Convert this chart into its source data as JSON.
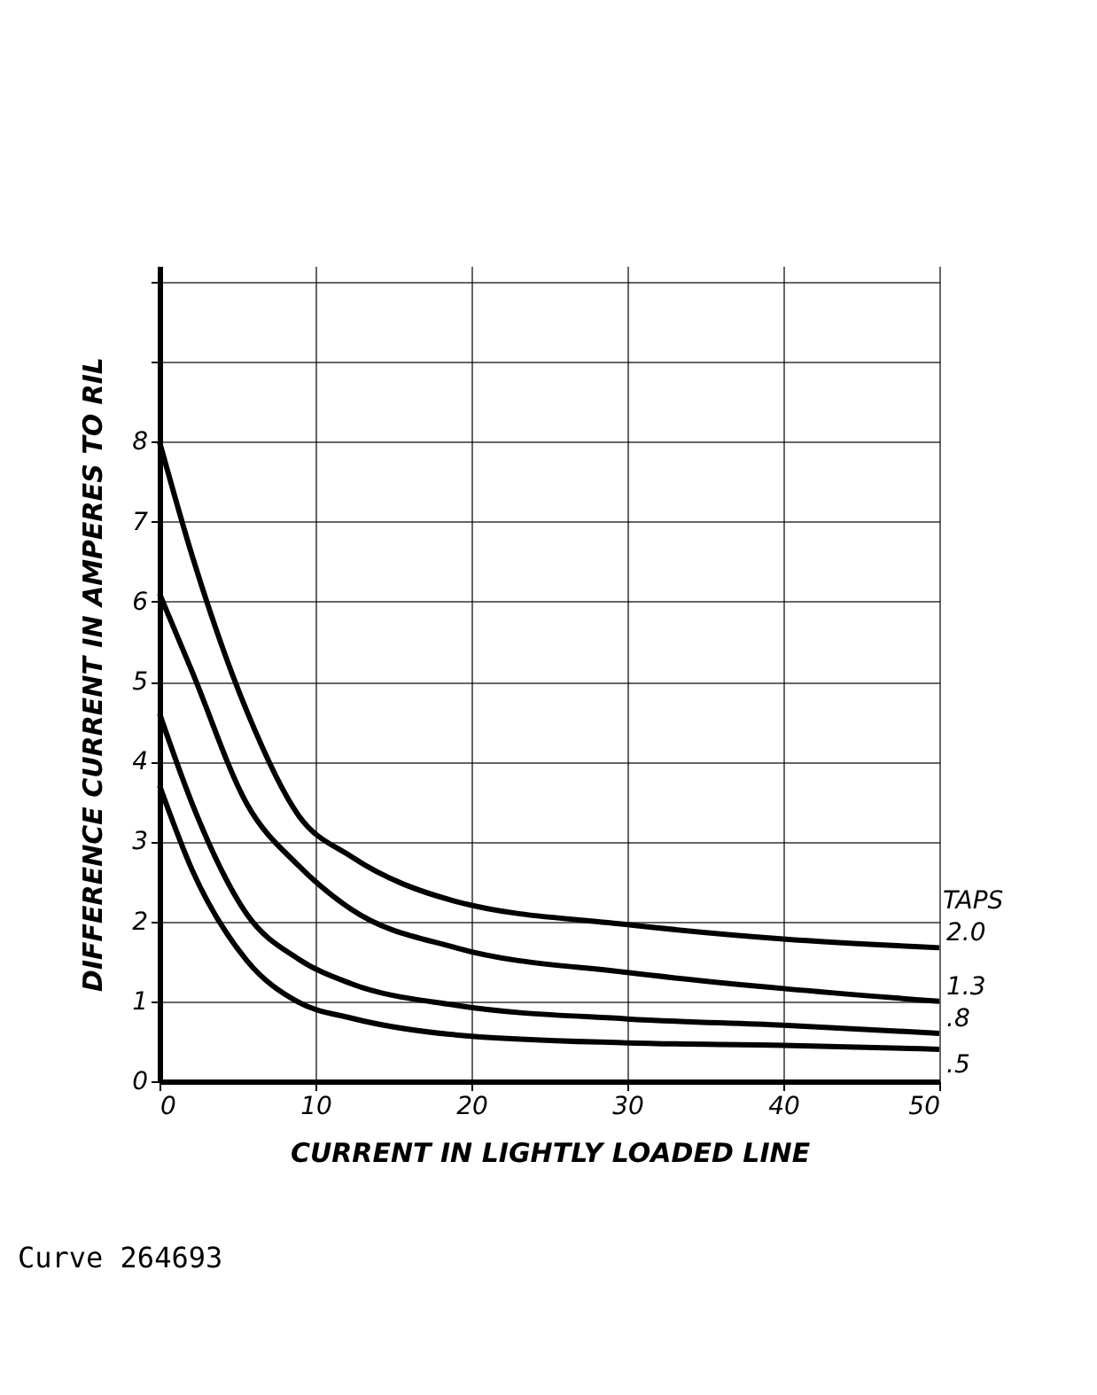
{
  "chart_data": {
    "type": "line",
    "xlabel": "CURRENT IN LIGHTLY LOADED LINE",
    "ylabel": "DIFFERENCE CURRENT IN AMPERES TO RIL",
    "legend_title": "TAPS",
    "x": [
      0,
      2.1,
      5.6,
      8.9,
      12.3,
      19,
      30,
      40,
      50
    ],
    "series": [
      {
        "name": "2.0",
        "color": "#000000",
        "values": [
          8,
          6.57,
          4.63,
          3.33,
          2.81,
          2.25,
          1.96,
          1.78,
          1.67
        ]
      },
      {
        "name": "1.3",
        "color": "#000000",
        "values": [
          6.1,
          5.12,
          3.47,
          2.7,
          2.15,
          1.67,
          1.36,
          1.16,
          1.0
        ]
      },
      {
        "name": ".8",
        "color": "#000000",
        "values": [
          4.6,
          3.47,
          2.09,
          1.53,
          1.22,
          0.95,
          0.78,
          0.7,
          0.6
        ]
      },
      {
        "name": ".5",
        "color": "#000000",
        "values": [
          3.7,
          2.64,
          1.51,
          0.99,
          0.79,
          0.58,
          0.48,
          0.45,
          0.4
        ]
      }
    ],
    "xlim": [
      0,
      50
    ],
    "ylim": [
      0,
      10.2
    ],
    "xticks": [
      0,
      10,
      20,
      30,
      40,
      50
    ],
    "yticks": [
      0,
      1,
      2,
      3,
      4,
      5,
      6,
      7,
      8,
      {
        "value": 9,
        "label": null
      },
      {
        "value": 10,
        "label": null
      }
    ],
    "grid": true,
    "marker": "none",
    "line_style": "solid",
    "annotations": [
      "Curve 264693"
    ]
  }
}
